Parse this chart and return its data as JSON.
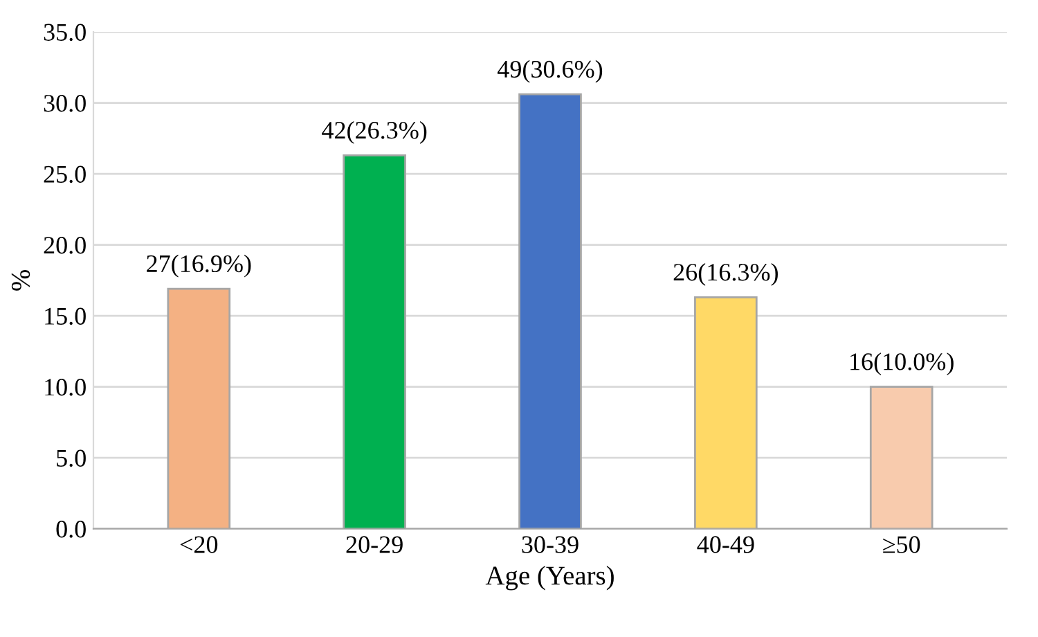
{
  "chart_data": {
    "type": "bar",
    "xlabel": "Age (Years)",
    "ylabel": "%",
    "categories": [
      "<20",
      "20-29",
      "30-39",
      "40-49",
      "≥50"
    ],
    "values": [
      16.9,
      26.3,
      30.6,
      16.3,
      10.0
    ],
    "colors": [
      "#f4b183",
      "#00b050",
      "#4472c4",
      "#ffd966",
      "#f8cbad"
    ],
    "value_labels": [
      "27(16.9%)",
      "42(26.3%)",
      "49(30.6%)",
      "26(16.3%)",
      "16(10.0%)"
    ],
    "ylim": [
      0,
      35
    ],
    "yticks": [
      {
        "value": 0,
        "label": "0.0"
      },
      {
        "value": 5,
        "label": "5.0"
      },
      {
        "value": 10,
        "label": "10.0"
      },
      {
        "value": 15,
        "label": "15.0"
      },
      {
        "value": 20,
        "label": "20.0"
      },
      {
        "value": 25,
        "label": "25.0"
      },
      {
        "value": 30,
        "label": "30.0"
      },
      {
        "value": 35,
        "label": "35.0"
      }
    ],
    "grid": "y"
  }
}
